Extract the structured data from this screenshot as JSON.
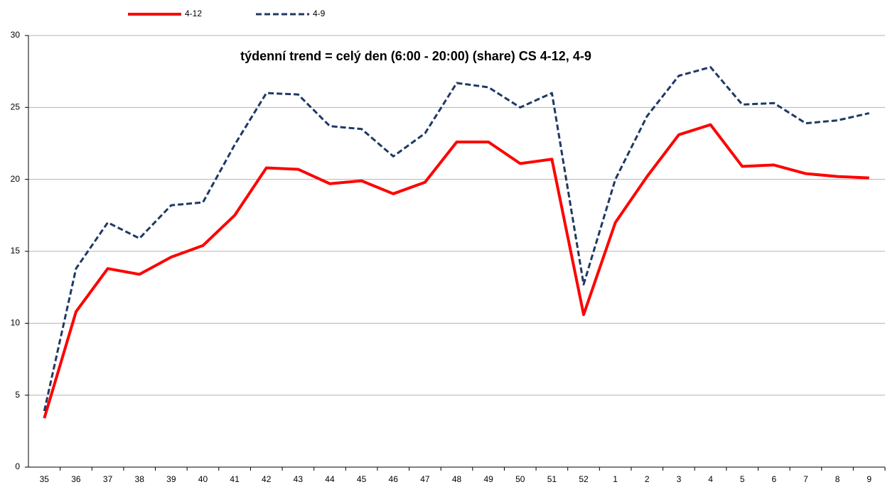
{
  "chart_data": {
    "type": "line",
    "title": "týdenní trend = celý den (6:00 - 20:00)  (share) CS 4-12, 4-9",
    "categories": [
      "35",
      "36",
      "37",
      "38",
      "39",
      "40",
      "41",
      "42",
      "43",
      "44",
      "45",
      "46",
      "47",
      "48",
      "49",
      "50",
      "51",
      "52",
      "1",
      "2",
      "3",
      "4",
      "5",
      "6",
      "7",
      "8",
      "9"
    ],
    "series": [
      {
        "name": "4-12",
        "color": "#ff0000",
        "dash": false,
        "values": [
          3.4,
          10.8,
          13.8,
          13.4,
          14.6,
          15.4,
          17.5,
          20.8,
          20.7,
          19.7,
          19.9,
          19.0,
          19.8,
          22.6,
          22.6,
          21.1,
          21.4,
          10.6,
          17.0,
          20.2,
          23.1,
          23.8,
          20.9,
          21.0,
          20.4,
          20.2,
          20.1
        ]
      },
      {
        "name": "4-9",
        "color": "#1f3864",
        "dash": true,
        "values": [
          3.9,
          13.8,
          17.0,
          15.9,
          18.2,
          18.4,
          22.4,
          26.0,
          25.9,
          23.7,
          23.5,
          21.6,
          23.2,
          26.7,
          26.4,
          25.0,
          26.0,
          12.7,
          20.0,
          24.4,
          27.2,
          27.8,
          25.2,
          25.3,
          23.9,
          24.1,
          24.6
        ]
      }
    ],
    "ylim": [
      0,
      30
    ],
    "yticks": [
      0,
      5,
      10,
      15,
      20,
      25,
      30
    ],
    "grid": true
  }
}
